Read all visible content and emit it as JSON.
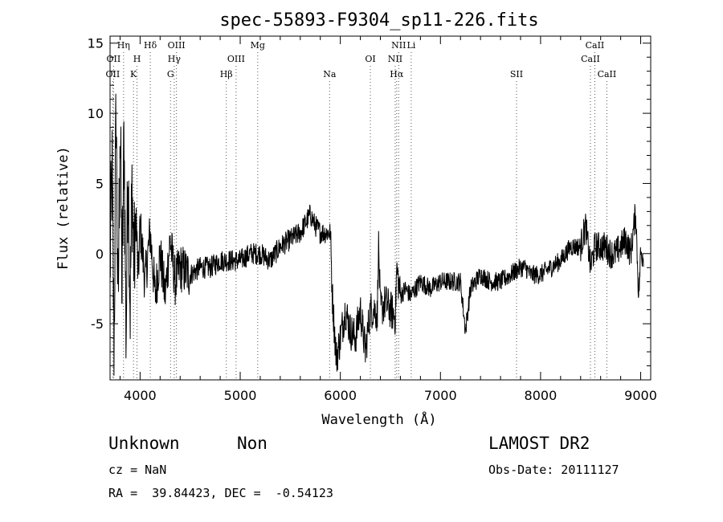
{
  "chart_data": {
    "type": "line",
    "title": "spec-55893-F9304_sp11-226.fits",
    "xlabel": "Wavelength (Å)",
    "ylabel": "Flux (relative)",
    "xlim": [
      3700,
      9100
    ],
    "ylim": [
      -9,
      15.5
    ],
    "xticks": [
      4000,
      5000,
      6000,
      7000,
      8000,
      9000
    ],
    "yticks": [
      -5,
      0,
      5,
      10,
      15
    ],
    "grid": false,
    "series": [
      {
        "x": [
          3700,
          3720,
          3740,
          3760,
          3780,
          3800,
          3820,
          3840,
          3860,
          3880,
          3900,
          3920,
          3940,
          3960,
          3980,
          4000,
          4050,
          4100,
          4150,
          4200,
          4250,
          4300,
          4350,
          4400,
          4500,
          4600,
          4700,
          4800,
          4900,
          5000,
          5100,
          5200,
          5300,
          5400,
          5500,
          5600,
          5700,
          5750,
          5800,
          5850,
          5900,
          5920,
          5960,
          6000,
          6050,
          6100,
          6150,
          6200,
          6250,
          6300,
          6350,
          6370,
          6380,
          6400,
          6450,
          6500,
          6550,
          6563,
          6580,
          6600,
          6650,
          6700,
          6750,
          6800,
          6900,
          7000,
          7100,
          7200,
          7250,
          7300,
          7400,
          7500,
          7600,
          7700,
          7800,
          7850,
          7900,
          8000,
          8100,
          8200,
          8300,
          8400,
          8450,
          8500,
          8542,
          8600,
          8650,
          8700,
          8750,
          8800,
          8850,
          8900,
          8950,
          8980,
          9000,
          9030
        ],
        "y": [
          -1,
          6,
          -7,
          11,
          -5,
          10,
          -3,
          8.8,
          -6,
          7,
          -4,
          5,
          -1,
          3,
          -2,
          2,
          -2,
          1.5,
          -3,
          0,
          -3,
          1,
          -2,
          -1,
          -1.5,
          -1,
          -1,
          -0.5,
          -0.5,
          -0.5,
          0,
          0,
          -0.5,
          0.5,
          1,
          1.5,
          2.8,
          2,
          1.5,
          1.5,
          1.5,
          -3,
          -7.5,
          -6,
          -4,
          -5.5,
          -6,
          -4,
          -7,
          -4,
          -4,
          -4.5,
          1,
          -4,
          -3.5,
          -4,
          -4.5,
          -1,
          -2,
          -3,
          -2.5,
          -3,
          -2.5,
          -2,
          -2.5,
          -2,
          -2,
          -2,
          -5.5,
          -2.5,
          -1.5,
          -2,
          -2,
          -1.5,
          -1,
          -1,
          -1.5,
          -1.5,
          -1,
          -0.5,
          0.5,
          0.5,
          2,
          -1,
          0.5,
          0.5,
          0.5,
          0,
          0,
          0.5,
          1,
          0,
          3,
          -3,
          0,
          0
        ]
      }
    ],
    "line_marks": [
      {
        "w": 3727,
        "label": "OII",
        "row": 2
      },
      {
        "w": 3735,
        "label": "OII",
        "row": 1
      },
      {
        "w": 3835,
        "label": "Hη",
        "row": 0
      },
      {
        "w": 3934,
        "label": "K",
        "row": 2
      },
      {
        "w": 3969,
        "label": "H",
        "row": 1
      },
      {
        "w": 4102,
        "label": "Hδ",
        "row": 0
      },
      {
        "w": 4304,
        "label": "G",
        "row": 2
      },
      {
        "w": 4341,
        "label": "Hγ",
        "row": 1
      },
      {
        "w": 4363,
        "label": "OIII",
        "row": 0
      },
      {
        "w": 4861,
        "label": "Hβ",
        "row": 2
      },
      {
        "w": 4959,
        "label": "OIII",
        "row": 1
      },
      {
        "w": 5175,
        "label": "Mg",
        "row": 0
      },
      {
        "w": 5893,
        "label": "Na",
        "row": 2
      },
      {
        "w": 6300,
        "label": "OI",
        "row": 1
      },
      {
        "w": 6548,
        "label": "NII",
        "row": 1
      },
      {
        "w": 6563,
        "label": "Hα",
        "row": 2
      },
      {
        "w": 6583,
        "label": "NII",
        "row": 0
      },
      {
        "w": 6708,
        "label": "Li",
        "row": 0
      },
      {
        "w": 7760,
        "label": "SII",
        "row": 2
      },
      {
        "w": 8498,
        "label": "CaII",
        "row": 1
      },
      {
        "w": 8542,
        "label": "CaII",
        "row": 0
      },
      {
        "w": 8662,
        "label": "CaII",
        "row": 2
      }
    ]
  },
  "info": {
    "class": "Unknown",
    "subclass": "Non",
    "survey": "LAMOST DR2",
    "cz": "cz = NaN",
    "obs_date": "Obs-Date: 20111127",
    "radec": "RA =  39.84423, DEC =  -0.54123"
  }
}
